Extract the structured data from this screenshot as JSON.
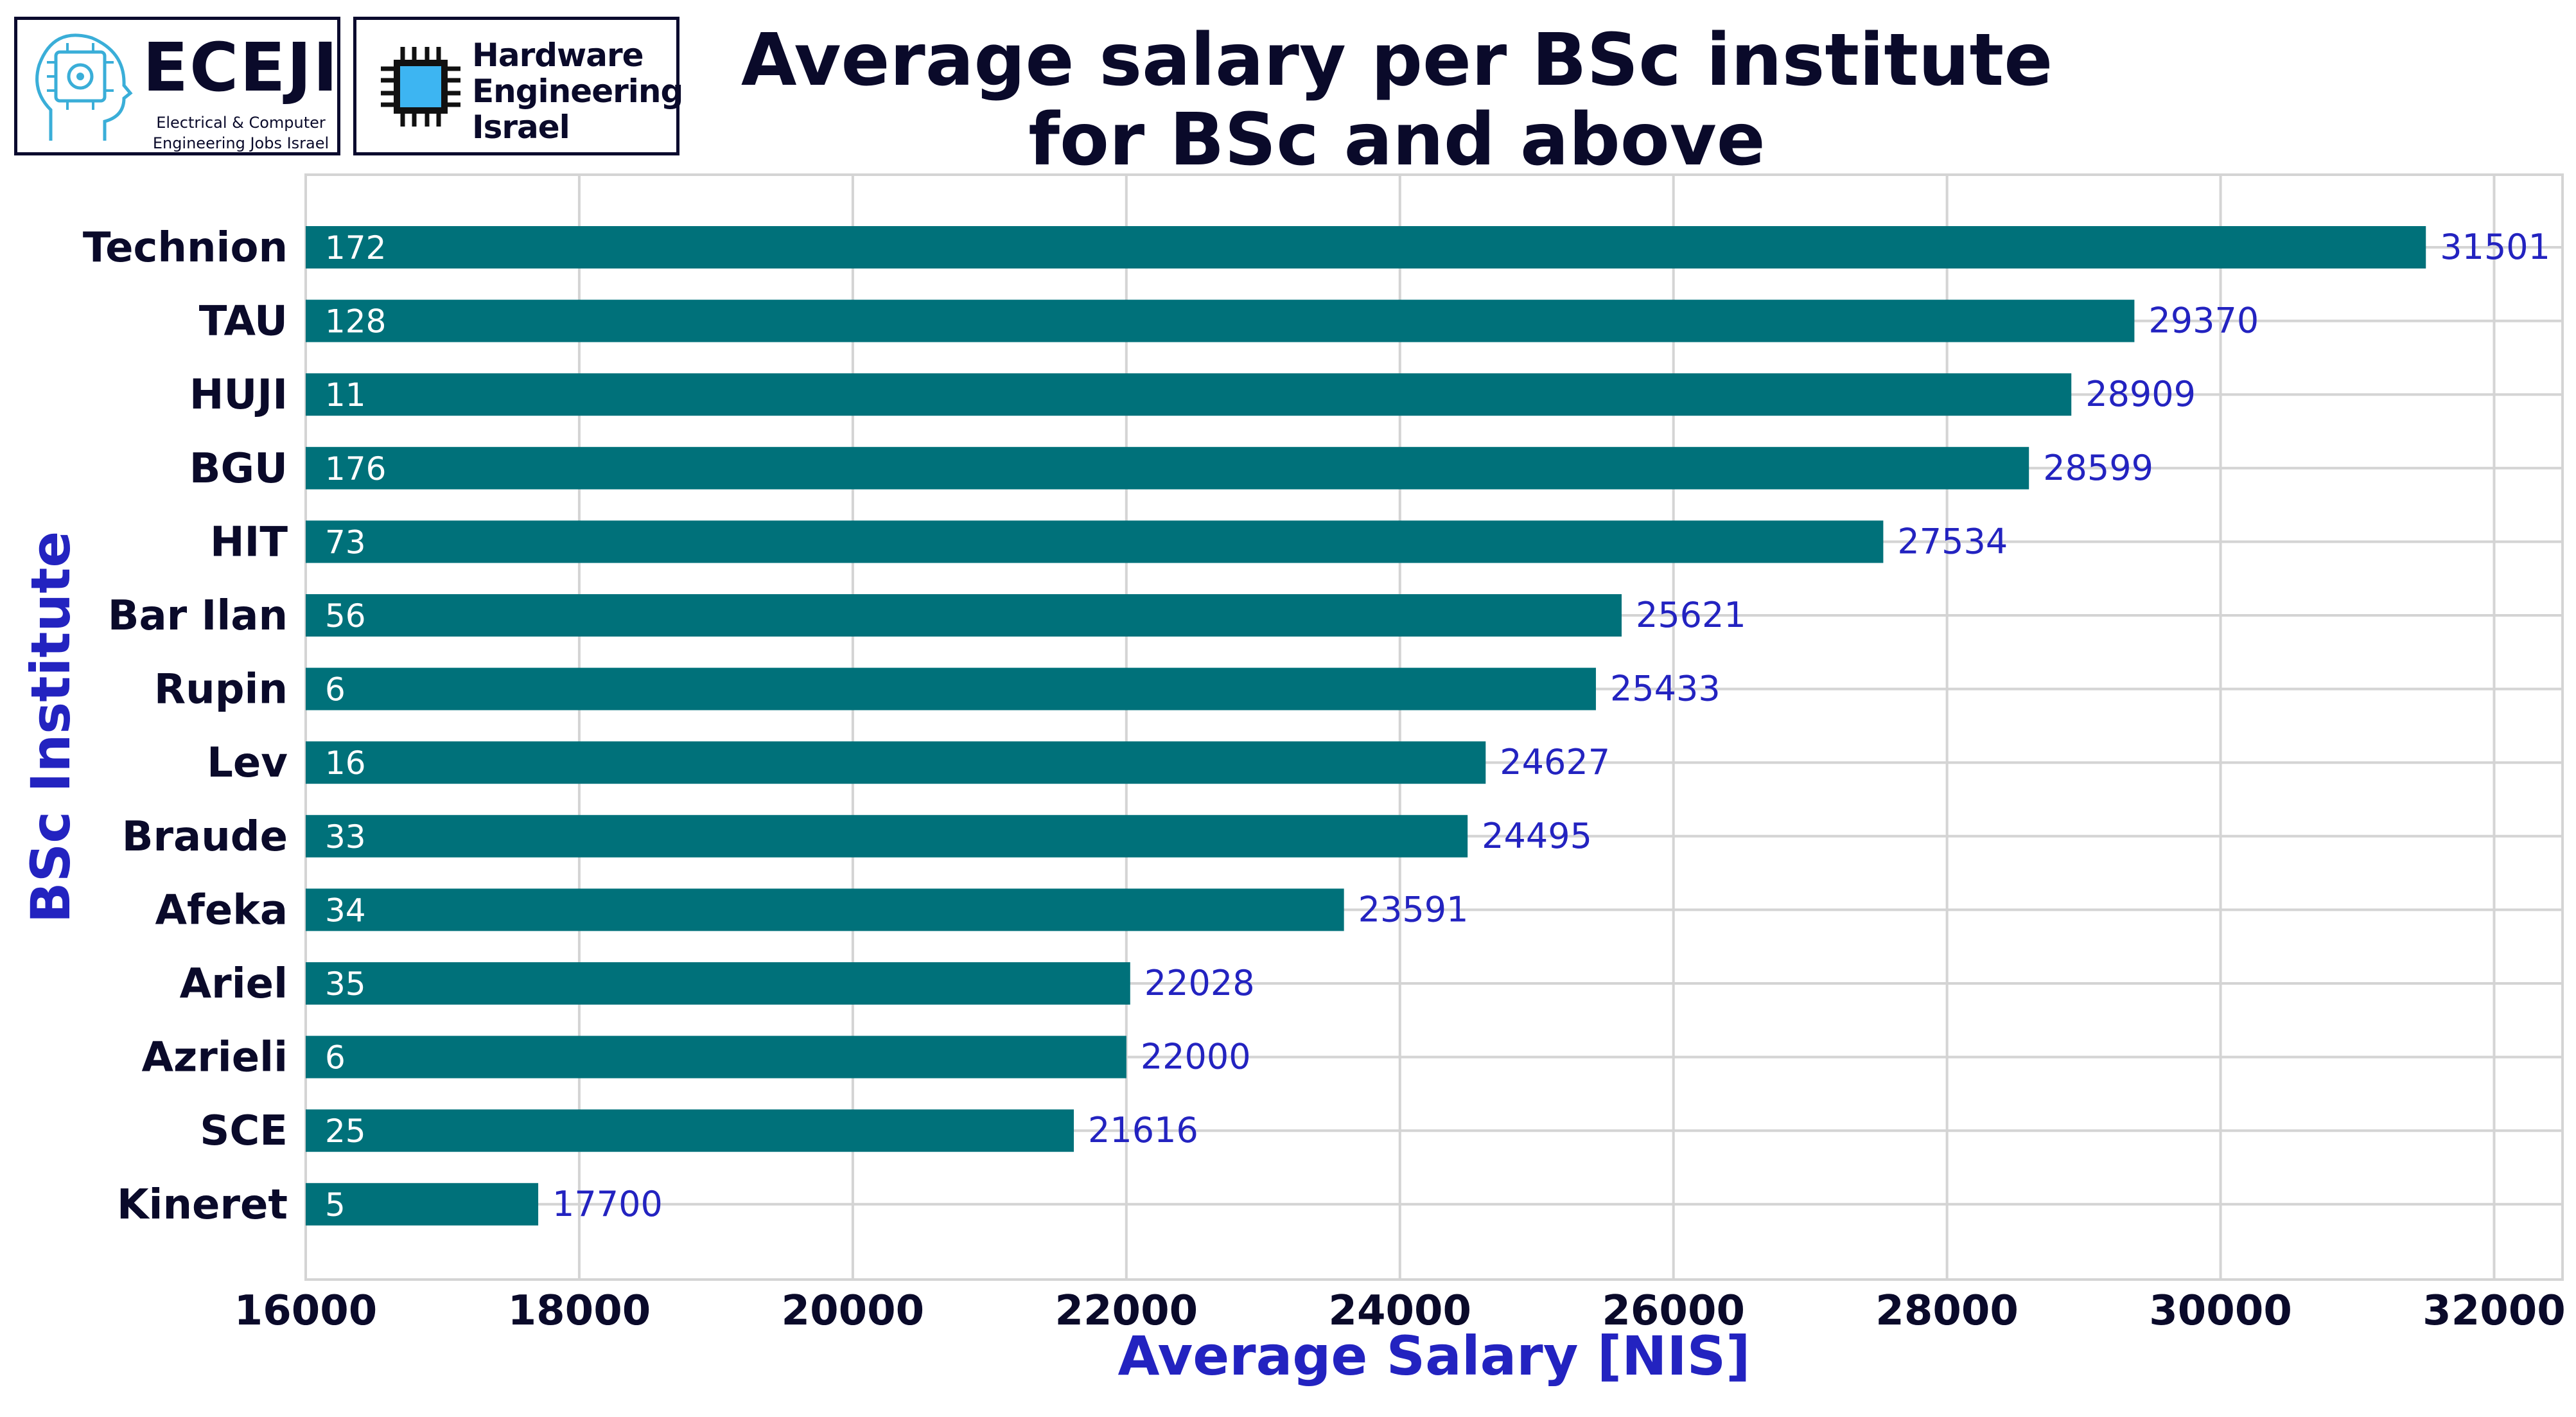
{
  "logos": {
    "eceji": {
      "title": "ECEJI",
      "subtitle_line1": "Electrical  &  Computer",
      "subtitle_line2": "Engineering Jobs Israel"
    },
    "hardware": {
      "line1": "Hardware",
      "line2": "Engineering",
      "line3": "Israel"
    }
  },
  "colors": {
    "bar": "#00717a",
    "value_label": "#2323c0",
    "count_label": "#ffffff",
    "axis_label": "#2323c0",
    "title": "#0a0a2a",
    "grid": "#d4d4d4"
  },
  "chart_data": {
    "type": "bar",
    "orientation": "horizontal",
    "title_line1": "Average salary per BSc institute",
    "title_line2": "for BSc and above",
    "xlabel": "Average Salary [NIS]",
    "ylabel": "BSc Institute",
    "xlim": [
      16000,
      32500
    ],
    "xticks": [
      "16000",
      "18000",
      "20000",
      "22000",
      "24000",
      "26000",
      "28000",
      "30000",
      "32000"
    ],
    "xtick_values": [
      16000,
      18000,
      20000,
      22000,
      24000,
      26000,
      28000,
      30000,
      32000
    ],
    "grid": true,
    "categories": [
      "Technion",
      "TAU",
      "HUJI",
      "BGU",
      "HIT",
      "Bar Ilan",
      "Rupin",
      "Lev",
      "Braude",
      "Afeka",
      "Ariel",
      "Azrieli",
      "SCE",
      "Kineret"
    ],
    "values": [
      31501,
      29370,
      28909,
      28599,
      27534,
      25621,
      25433,
      24627,
      24495,
      23591,
      22028,
      22000,
      21616,
      17700
    ],
    "counts": [
      172,
      128,
      11,
      176,
      73,
      56,
      6,
      16,
      33,
      34,
      35,
      6,
      25,
      5
    ]
  }
}
